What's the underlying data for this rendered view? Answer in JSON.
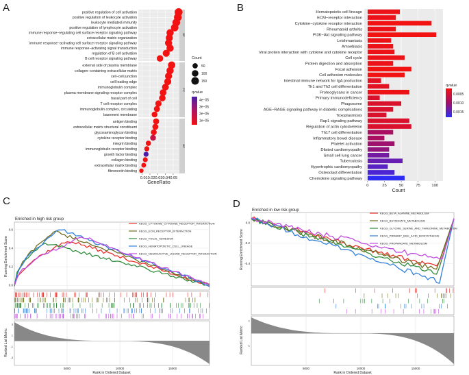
{
  "panel_letters": {
    "a": "A",
    "b": "B",
    "c": "C",
    "d": "D"
  },
  "chart_data": [
    {
      "panel": "A",
      "type": "scatter",
      "xlabel": "GeneRatio",
      "x_ticks": [
        0.01,
        0.02,
        0.03,
        0.04,
        0.05
      ],
      "x_tick_labels": [
        "0.01",
        "0.02",
        "0.03",
        "0.04",
        "0.05"
      ],
      "xlim": [
        0.005,
        0.058
      ],
      "groups": [
        {
          "name": "BP",
          "terms": [
            {
              "term": "positive regulation of cell activation",
              "x": 0.057,
              "count": 165,
              "q": 1e-08
            },
            {
              "term": "positive regulation of leukocyte activation",
              "x": 0.056,
              "count": 160,
              "q": 1e-08
            },
            {
              "term": "leukocyte mediated immunity",
              "x": 0.054,
              "count": 155,
              "q": 1e-08
            },
            {
              "term": "positive regulation of lymphocyte activation",
              "x": 0.052,
              "count": 148,
              "q": 1e-08
            },
            {
              "term": "immune response−regulating cell surface receptor signaling pathway",
              "x": 0.046,
              "count": 130,
              "q": 1e-08
            },
            {
              "term": "extracellular matrix organization",
              "x": 0.045,
              "count": 128,
              "q": 1e-08
            },
            {
              "term": "immune response−activating cell surface receptor signaling pathway",
              "x": 0.044,
              "count": 125,
              "q": 1e-08
            },
            {
              "term": "immune response−activating signal transduction",
              "x": 0.046,
              "count": 130,
              "q": 1e-08
            },
            {
              "term": "regulation of B cell activation",
              "x": 0.041,
              "count": 118,
              "q": 1e-08
            },
            {
              "term": "B cell receptor signaling pathway",
              "x": 0.033,
              "count": 95,
              "q": 1e-08
            }
          ]
        },
        {
          "name": "CC",
          "terms": [
            {
              "term": "external side of plasma membrane",
              "x": 0.048,
              "count": 135,
              "q": 1e-08
            },
            {
              "term": "collagen−containing extracellular matrix",
              "x": 0.046,
              "count": 130,
              "q": 1e-08
            },
            {
              "term": "cell−cell junction",
              "x": 0.044,
              "count": 125,
              "q": 1e-08
            },
            {
              "term": "cell leading edge",
              "x": 0.043,
              "count": 122,
              "q": 1e-08
            },
            {
              "term": "immunoglobulin complex",
              "x": 0.04,
              "count": 112,
              "q": 1e-08
            },
            {
              "term": "plasma membrane signaling receptor complex",
              "x": 0.037,
              "count": 105,
              "q": 1e-08
            },
            {
              "term": "basal part of cell",
              "x": 0.036,
              "count": 100,
              "q": 1e-08
            },
            {
              "term": "T cell receptor complex",
              "x": 0.031,
              "count": 88,
              "q": 1e-08
            },
            {
              "term": "immunoglobulin complex, circulating",
              "x": 0.029,
              "count": 80,
              "q": 1e-08
            },
            {
              "term": "basement membrane",
              "x": 0.026,
              "count": 72,
              "q": 1e-08
            }
          ]
        },
        {
          "name": "MF",
          "terms": [
            {
              "term": "antigen binding",
              "x": 0.028,
              "count": 78,
              "q": 1e-08
            },
            {
              "term": "extracellular matrix structural constituent",
              "x": 0.027,
              "count": 75,
              "q": 1e-08
            },
            {
              "term": "glycosaminoglycan binding",
              "x": 0.025,
              "count": 70,
              "q": 1e-08
            },
            {
              "term": "cytokine receptor binding",
              "x": 0.024,
              "count": 68,
              "q": 1.5e-05
            },
            {
              "term": "integrin binding",
              "x": 0.018,
              "count": 50,
              "q": 1e-08
            },
            {
              "term": "immunoglobulin receptor binding",
              "x": 0.016,
              "count": 45,
              "q": 1e-08
            },
            {
              "term": "growth factor binding",
              "x": 0.015,
              "count": 42,
              "q": 4.5e-05
            },
            {
              "term": "collagen binding",
              "x": 0.014,
              "count": 40,
              "q": 1e-08
            },
            {
              "term": "extracellular matrix binding",
              "x": 0.012,
              "count": 35,
              "q": 1e-08
            },
            {
              "term": "fibronectin binding",
              "x": 0.009,
              "count": 25,
              "q": 1e-08
            }
          ]
        }
      ],
      "legend_count": {
        "title": "Count",
        "values": [
          50,
          100,
          150
        ],
        "labels": [
          "50",
          "100",
          "150"
        ]
      },
      "legend_qvalue": {
        "title": "qvalue",
        "labels": [
          "4e−05",
          "3e−05",
          "2e−05",
          "1e−05"
        ]
      }
    },
    {
      "panel": "B",
      "type": "bar",
      "orientation": "horizontal",
      "xlabel": "Count",
      "x_ticks": [
        0,
        25,
        50,
        75,
        100
      ],
      "x_tick_labels": [
        "0",
        "25",
        "50",
        "75",
        "100"
      ],
      "xlim": [
        -5,
        112
      ],
      "categories": [
        "Hematopoietic cell lineage",
        "ECM−receptor interaction",
        "Cytokine−cytokine receptor interaction",
        "Rheumatoid arthritis",
        "PI3K−Akt signaling pathway",
        "Leishmaniasis",
        "Amoebiasis",
        "Viral protein interaction with cytokine and cytokine receptor",
        "Cell cycle",
        "Protein digestion and absorption",
        "Focal adhesion",
        "Cell adhesion molecules",
        "Intestinal immune network for IgA production",
        "Th1 and Th2 cell differentiation",
        "Proteoglycans in cancer",
        "Primary immunodeficiency",
        "Phagosome",
        "AGE−RAGE signaling pathway in diabetic complications",
        "Toxoplasmosis",
        "Rap1 signaling pathway",
        "Regulation of actin cytoskeleton",
        "Th17 cell differentiation",
        "Inflammatory bowel disease",
        "Platelet activation",
        "Dilated cardiomyopathy",
        "Small cell lung cancer",
        "Tuberculosis",
        "Hypertrophic cardiomyopathy",
        "Osteoclast differentiation",
        "Chemokine signaling pathway"
      ],
      "values": [
        48,
        42,
        95,
        42,
        102,
        35,
        38,
        40,
        55,
        38,
        65,
        55,
        20,
        32,
        62,
        18,
        50,
        38,
        28,
        62,
        65,
        38,
        25,
        40,
        32,
        32,
        52,
        30,
        40,
        55
      ],
      "qvalues": [
        0.0001,
        0.0001,
        5e-05,
        0.0001,
        5e-05,
        0.0001,
        0.0001,
        0.0001,
        0.0001,
        0.0001,
        5e-05,
        5e-05,
        0.0002,
        0.0002,
        0.0001,
        0.0003,
        0.0003,
        0.0003,
        0.0003,
        0.0003,
        0.0003,
        0.0008,
        0.0008,
        0.0009,
        0.001,
        0.0012,
        0.0013,
        0.0014,
        0.0015,
        0.0017
      ],
      "legend_qvalue": {
        "title": "qvalue",
        "labels": [
          "0.0005",
          "0.0010",
          "0.0015"
        ]
      }
    },
    {
      "panel": "C",
      "type": "line",
      "title": "Enriched in high risk group",
      "ylabel": "Running Enrichment Score",
      "y_ticks": [
        0.0,
        0.2,
        0.4,
        0.6
      ],
      "y_tick_labels": [
        "0.0",
        "0.2",
        "0.4",
        "0.6"
      ],
      "ylim": [
        -0.05,
        0.68
      ],
      "metric_ylabel": "Ranked List Metric",
      "metric_ticks": [
        -3,
        -1,
        1,
        3
      ],
      "metric_tick_labels": [
        "-3",
        "-1",
        "1",
        "3"
      ],
      "xlabel": "Rank in Ordered Dataset",
      "x_ticks": [
        5000,
        10000,
        15000
      ],
      "x_tick_labels": [
        "5000",
        "10000",
        "15000"
      ],
      "xlim": [
        0,
        18500
      ],
      "series": [
        {
          "name": "KEGG_CYTOKINE_CYTOKINE_RECEPTOR_INTERACTION",
          "color": "#e6312b",
          "peak_rank": 5200,
          "peak_es": 0.48,
          "start_es": 0.3
        },
        {
          "name": "KEGG_ECM_RECEPTOR_INTERACTION",
          "color": "#6d6d1e",
          "peak_rank": 3800,
          "peak_es": 0.58,
          "start_es": 0.2
        },
        {
          "name": "KEGG_FOCAL_ADHESION",
          "color": "#2e8b3a",
          "peak_rank": 2800,
          "peak_es": 0.46,
          "start_es": 0.3
        },
        {
          "name": "KEGG_HEMATOPOIETIC_CELL_LINEAGE",
          "color": "#2f7fd9",
          "peak_rank": 4400,
          "peak_es": 0.6,
          "start_es": 0.1
        },
        {
          "name": "KEGG_NEUROACTIVE_LIGAND_RECEPTOR_INTERACTION",
          "color": "#c04be0",
          "peak_rank": 6600,
          "peak_es": 0.52,
          "start_es": 0.3
        }
      ]
    },
    {
      "panel": "D",
      "type": "line",
      "title": "Enriched in low risk group",
      "ylabel": "Running Enrichment Score",
      "y_ticks": [
        0.0,
        -0.2,
        -0.4
      ],
      "y_tick_labels": [
        "0.0",
        "-0.2",
        "-0.4"
      ],
      "ylim": [
        -0.62,
        0.1
      ],
      "metric_ylabel": "Ranked List Metric",
      "metric_ticks": [
        -1,
        1
      ],
      "metric_tick_labels": [
        "-1",
        "1"
      ],
      "xlabel": "Rank in Ordered Dataset",
      "x_ticks": [
        5000,
        10000,
        15000
      ],
      "x_tick_labels": [
        "5000",
        "10000",
        "15000"
      ],
      "xlim": [
        0,
        18500
      ],
      "series": [
        {
          "name": "KEGG_BETA_ALANINE_METABOLISM",
          "color": "#e6312b",
          "trough_rank": 17000,
          "trough_es": -0.44
        },
        {
          "name": "KEGG_BUTANOATE_METABOLISM",
          "color": "#6d6d1e",
          "trough_rank": 16900,
          "trough_es": -0.46
        },
        {
          "name": "KEGG_GLYCINE_SERINE_AND_THREONINE_METABOLISM",
          "color": "#2e8b3a",
          "trough_rank": 17000,
          "trough_es": -0.5
        },
        {
          "name": "KEGG_PRIMARY_BILE_ACID_BIOSYNTHESIS",
          "color": "#2f7fd9",
          "trough_rank": 17200,
          "trough_es": -0.58
        },
        {
          "name": "KEGG_PROPANOATE_METABOLISM",
          "color": "#c04be0",
          "trough_rank": 17400,
          "trough_es": -0.37
        }
      ]
    }
  ]
}
